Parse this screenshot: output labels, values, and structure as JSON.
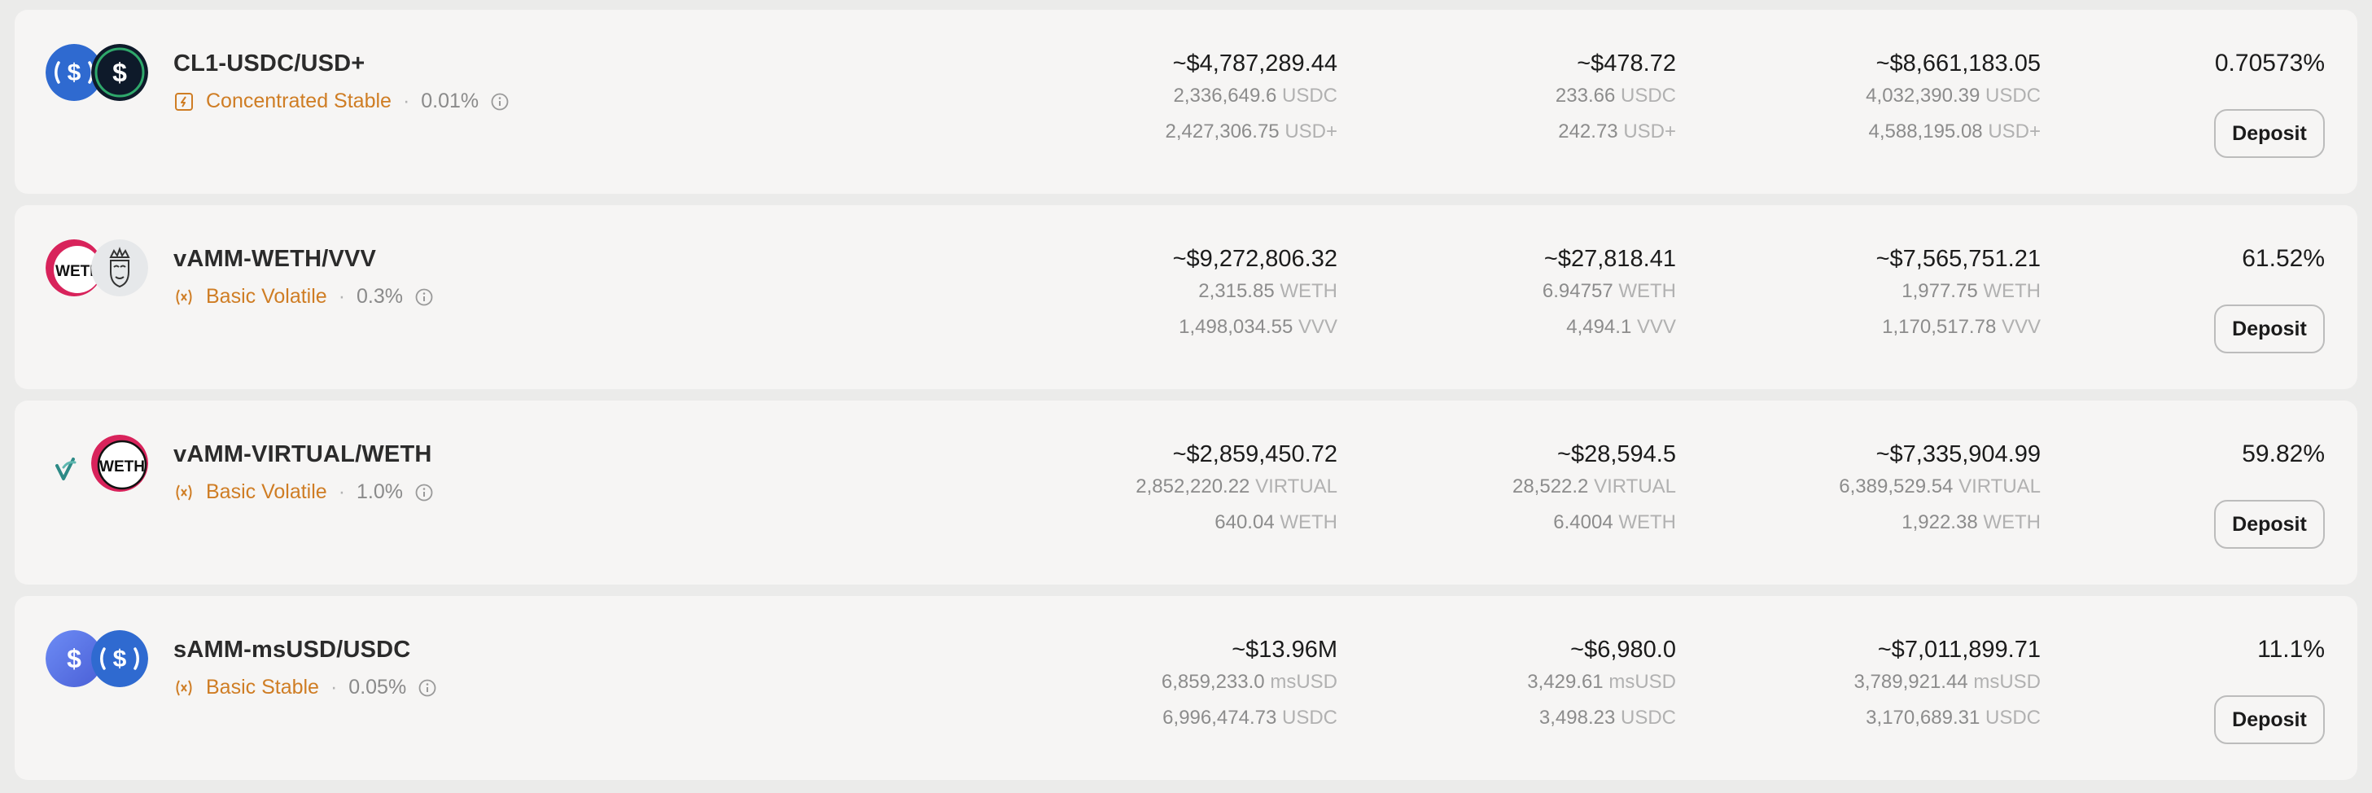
{
  "rows": [
    {
      "name": "CL1-USDC/USD+",
      "type": "Concentrated Stable",
      "type_icon": "concentrated-icon",
      "fee": "0.01%",
      "token_icons": [
        "usdc-icon",
        "usd-plus-icon"
      ],
      "tvl": "~$4,787,289.44",
      "tvl_amounts": [
        {
          "value": "2,336,649.6",
          "symbol": "USDC"
        },
        {
          "value": "2,427,306.75",
          "symbol": "USD+"
        }
      ],
      "fees": "~$478.72",
      "fees_amounts": [
        {
          "value": "233.66",
          "symbol": "USDC"
        },
        {
          "value": "242.73",
          "symbol": "USD+"
        }
      ],
      "volume": "~$8,661,183.05",
      "volume_amounts": [
        {
          "value": "4,032,390.39",
          "symbol": "USDC"
        },
        {
          "value": "4,588,195.08",
          "symbol": "USD+"
        }
      ],
      "apr": "0.70573%",
      "button": "Deposit"
    },
    {
      "name": "vAMM-WETH/VVV",
      "type": "Basic Volatile",
      "type_icon": "volatile-icon",
      "fee": "0.3%",
      "token_icons": [
        "weth-icon",
        "vvv-icon"
      ],
      "token_icon_text": "WETH",
      "tvl": "~$9,272,806.32",
      "tvl_amounts": [
        {
          "value": "2,315.85",
          "symbol": "WETH"
        },
        {
          "value": "1,498,034.55",
          "symbol": "VVV"
        }
      ],
      "fees": "~$27,818.41",
      "fees_amounts": [
        {
          "value": "6.94757",
          "symbol": "WETH"
        },
        {
          "value": "4,494.1",
          "symbol": "VVV"
        }
      ],
      "volume": "~$7,565,751.21",
      "volume_amounts": [
        {
          "value": "1,977.75",
          "symbol": "WETH"
        },
        {
          "value": "1,170,517.78",
          "symbol": "VVV"
        }
      ],
      "apr": "61.52%",
      "button": "Deposit"
    },
    {
      "name": "vAMM-VIRTUAL/WETH",
      "type": "Basic Volatile",
      "type_icon": "volatile-icon",
      "fee": "1.0%",
      "token_icons": [
        "virtual-icon",
        "weth-icon"
      ],
      "token_icon_text": "WETH",
      "tvl": "~$2,859,450.72",
      "tvl_amounts": [
        {
          "value": "2,852,220.22",
          "symbol": "VIRTUAL"
        },
        {
          "value": "640.04",
          "symbol": "WETH"
        }
      ],
      "fees": "~$28,594.5",
      "fees_amounts": [
        {
          "value": "28,522.2",
          "symbol": "VIRTUAL"
        },
        {
          "value": "6.4004",
          "symbol": "WETH"
        }
      ],
      "volume": "~$7,335,904.99",
      "volume_amounts": [
        {
          "value": "6,389,529.54",
          "symbol": "VIRTUAL"
        },
        {
          "value": "1,922.38",
          "symbol": "WETH"
        }
      ],
      "apr": "59.82%",
      "button": "Deposit"
    },
    {
      "name": "sAMM-msUSD/USDC",
      "type": "Basic Stable",
      "type_icon": "stable-icon",
      "fee": "0.05%",
      "token_icons": [
        "msusd-icon",
        "usdc-icon"
      ],
      "tvl": "~$13.96M",
      "tvl_amounts": [
        {
          "value": "6,859,233.0",
          "symbol": "msUSD"
        },
        {
          "value": "6,996,474.73",
          "symbol": "USDC"
        }
      ],
      "fees": "~$6,980.0",
      "fees_amounts": [
        {
          "value": "3,429.61",
          "symbol": "msUSD"
        },
        {
          "value": "3,498.23",
          "symbol": "USDC"
        }
      ],
      "volume": "~$7,011,899.71",
      "volume_amounts": [
        {
          "value": "3,789,921.44",
          "symbol": "msUSD"
        },
        {
          "value": "3,170,689.31",
          "symbol": "USDC"
        }
      ],
      "apr": "11.1%",
      "button": "Deposit"
    }
  ],
  "colors": {
    "accent_orange": "#cf7d24",
    "muted_text": "#8c8c8c",
    "row_bg": "#f6f5f4",
    "page_bg": "#ebebea"
  }
}
